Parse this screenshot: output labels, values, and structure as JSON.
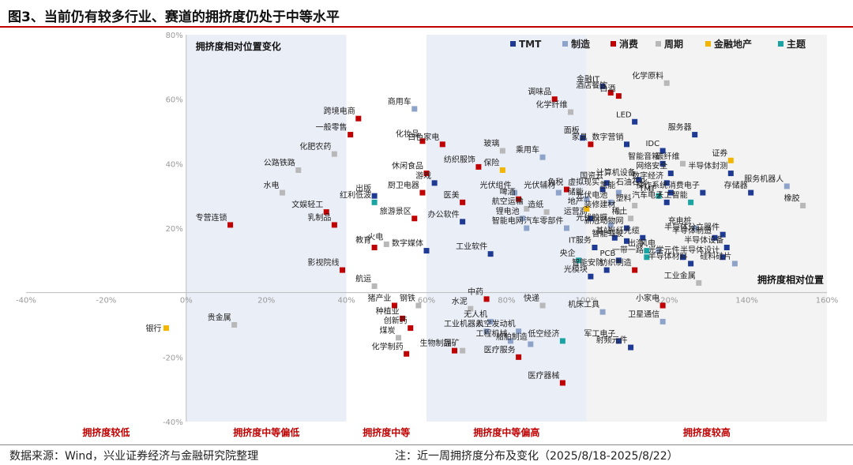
{
  "title": "图3、当前仍有较多行业、赛道的拥挤度仍处于中等水平",
  "footer": {
    "source": "数据来源：Wind，兴业证券经济与金融研究院整理",
    "note": "注：近一周拥挤度分布及变化（2025/8/18-2025/8/22）"
  },
  "colors": {
    "TMT": "#1f3a93",
    "制造": "#8ea3c9",
    "消费": "#c00000",
    "周期": "#b8b8b8",
    "金融地产": "#f2b600",
    "主题": "#1aa3a3"
  },
  "chart_data": {
    "type": "scatter",
    "xlabel": "拥挤度相对位置",
    "ylabel": "拥挤度相对位置变化",
    "xlim": [
      -40,
      160
    ],
    "ylim": [
      -40,
      80
    ],
    "xticks": [
      "-40%",
      "-20%",
      "0%",
      "20%",
      "40%",
      "60%",
      "80%",
      "100%",
      "120%",
      "140%",
      "160%"
    ],
    "yticks": [
      "-40%",
      "-20%",
      "0%",
      "20%",
      "40%",
      "60%",
      "80%"
    ],
    "zones": [
      {
        "from": 0,
        "to": 40,
        "label": "拥挤度中等偏低",
        "fill": "#eaeef7"
      },
      {
        "from": 40,
        "to": 60,
        "label": "拥挤度中等",
        "fill": "#ffffff"
      },
      {
        "from": 60,
        "to": 100,
        "label": "拥挤度中等偏高",
        "fill": "#eaeef7"
      },
      {
        "from": 100,
        "to": 160,
        "label": "拥挤度较高",
        "fill": "#f3f3f3"
      }
    ],
    "left_zone_label": "拥挤度较低",
    "legend": [
      "TMT",
      "制造",
      "消费",
      "周期",
      "金融地产",
      "主题"
    ],
    "points": [
      {
        "name": "银行",
        "x": -5,
        "y": -11,
        "cat": "金融地产"
      },
      {
        "name": "贵金属",
        "x": 12,
        "y": -10,
        "cat": "周期"
      },
      {
        "name": "专营连锁",
        "x": 11,
        "y": 21,
        "cat": "消费"
      },
      {
        "name": "跨境电商",
        "x": 43,
        "y": 54,
        "cat": "消费"
      },
      {
        "name": "一般零售",
        "x": 41,
        "y": 49,
        "cat": "消费"
      },
      {
        "name": "化肥农药",
        "x": 37,
        "y": 43,
        "cat": "周期"
      },
      {
        "name": "公路铁路",
        "x": 28,
        "y": 38,
        "cat": "周期"
      },
      {
        "name": "水电",
        "x": 24,
        "y": 31,
        "cat": "周期"
      },
      {
        "name": "文娱轻工",
        "x": 35,
        "y": 25,
        "cat": "消费"
      },
      {
        "name": "乳制品",
        "x": 37,
        "y": 21,
        "cat": "消费"
      },
      {
        "name": "出版",
        "x": 47,
        "y": 30,
        "cat": "TMT"
      },
      {
        "name": "红利低波",
        "x": 47,
        "y": 28,
        "cat": "主题"
      },
      {
        "name": "影视院线",
        "x": 39,
        "y": 7,
        "cat": "消费"
      },
      {
        "name": "教育",
        "x": 47,
        "y": 14,
        "cat": "消费"
      },
      {
        "name": "火电",
        "x": 50,
        "y": 15,
        "cat": "周期"
      },
      {
        "name": "航运",
        "x": 47,
        "y": 2,
        "cat": "周期"
      },
      {
        "name": "商用车",
        "x": 57,
        "y": 57,
        "cat": "制造"
      },
      {
        "name": "化妆品",
        "x": 59,
        "y": 47,
        "cat": "消费"
      },
      {
        "name": "白色家电",
        "x": 64,
        "y": 46,
        "cat": "消费"
      },
      {
        "name": "休闲食品",
        "x": 60,
        "y": 37,
        "cat": "消费"
      },
      {
        "name": "厨卫电器",
        "x": 59,
        "y": 31,
        "cat": "消费"
      },
      {
        "name": "游戏",
        "x": 62,
        "y": 34,
        "cat": "TMT"
      },
      {
        "name": "旅游景区",
        "x": 57,
        "y": 23,
        "cat": "消费"
      },
      {
        "name": "办公软件",
        "x": 69,
        "y": 22,
        "cat": "TMT"
      },
      {
        "name": "数字媒体",
        "x": 60,
        "y": 13,
        "cat": "TMT"
      },
      {
        "name": "医美",
        "x": 69,
        "y": 28,
        "cat": "消费"
      },
      {
        "name": "纺织服饰",
        "x": 73,
        "y": 39,
        "cat": "消费"
      },
      {
        "name": "玻璃",
        "x": 79,
        "y": 44,
        "cat": "周期"
      },
      {
        "name": "保险",
        "x": 79,
        "y": 38,
        "cat": "金融地产"
      },
      {
        "name": "调味品",
        "x": 92,
        "y": 60,
        "cat": "消费"
      },
      {
        "name": "化学纤维",
        "x": 96,
        "y": 56,
        "cat": "周期"
      },
      {
        "name": "乘用车",
        "x": 89,
        "y": 42,
        "cat": "制造"
      },
      {
        "name": "光伏组件",
        "x": 82,
        "y": 31,
        "cat": "制造"
      },
      {
        "name": "啤酒",
        "x": 83,
        "y": 29,
        "cat": "消费"
      },
      {
        "name": "航空运输",
        "x": 85,
        "y": 26,
        "cat": "周期"
      },
      {
        "name": "锂电池",
        "x": 84,
        "y": 23,
        "cat": "制造"
      },
      {
        "name": "智能电网",
        "x": 85,
        "y": 20,
        "cat": "制造"
      },
      {
        "name": "造纸",
        "x": 90,
        "y": 25,
        "cat": "周期"
      },
      {
        "name": "光伏辅材",
        "x": 93,
        "y": 31,
        "cat": "制造"
      },
      {
        "name": "免税",
        "x": 95,
        "y": 32,
        "cat": "消费"
      },
      {
        "name": "储能",
        "x": 100,
        "y": 29,
        "cat": "制造"
      },
      {
        "name": "工业软件",
        "x": 76,
        "y": 12,
        "cat": "TMT"
      },
      {
        "name": "汽车零部件",
        "x": 95,
        "y": 20,
        "cat": "制造"
      },
      {
        "name": "运营商",
        "x": 101,
        "y": 23,
        "cat": "TMT"
      },
      {
        "name": "IT服务",
        "x": 102,
        "y": 14,
        "cat": "TMT"
      },
      {
        "name": "央企",
        "x": 98,
        "y": 10,
        "cat": "主题"
      },
      {
        "name": "光模块",
        "x": 101,
        "y": 5,
        "cat": "TMT"
      },
      {
        "name": "智能安防",
        "x": 105,
        "y": 7,
        "cat": "TMT"
      },
      {
        "name": "金融IT",
        "x": 104,
        "y": 64,
        "cat": "TMT"
      },
      {
        "name": "酒店餐饮",
        "x": 106,
        "y": 62,
        "cat": "消费"
      },
      {
        "name": "白酒",
        "x": 108,
        "y": 61,
        "cat": "消费"
      },
      {
        "name": "面板",
        "x": 99,
        "y": 48,
        "cat": "TMT"
      },
      {
        "name": "家具",
        "x": 101,
        "y": 46,
        "cat": "消费"
      },
      {
        "name": "LED",
        "x": 112,
        "y": 53,
        "cat": "TMT"
      },
      {
        "name": "数字营销",
        "x": 110,
        "y": 46,
        "cat": "TMT"
      },
      {
        "name": "IDC",
        "x": 119,
        "y": 44,
        "cat": "TMT"
      },
      {
        "name": "化学原料",
        "x": 120,
        "y": 65,
        "cat": "周期"
      },
      {
        "name": "服务器",
        "x": 127,
        "y": 49,
        "cat": "TMT"
      },
      {
        "name": "智能音箱",
        "x": 119,
        "y": 40,
        "cat": "TMT"
      },
      {
        "name": "碳纤维",
        "x": 124,
        "y": 40,
        "cat": "周期"
      },
      {
        "name": "国资云",
        "x": 105,
        "y": 34,
        "cat": "TMT"
      },
      {
        "name": "计算机设备",
        "x": 113,
        "y": 35,
        "cat": "TMT"
      },
      {
        "name": "石油石化",
        "x": 116,
        "y": 32,
        "cat": "周期"
      },
      {
        "name": "网络安全",
        "x": 121,
        "y": 37,
        "cat": "TMT"
      },
      {
        "name": "数字经济",
        "x": 120,
        "y": 34,
        "cat": "TMT"
      },
      {
        "name": "虚拟现实",
        "x": 104,
        "y": 32,
        "cat": "TMT"
      },
      {
        "name": "氢能",
        "x": 108,
        "y": 31,
        "cat": "制造"
      },
      {
        "name": "光伏电池",
        "x": 106,
        "y": 28,
        "cat": "制造"
      },
      {
        "name": "TMT",
        "x": 118,
        "y": 30,
        "cat": "主题"
      },
      {
        "name": "操作系统",
        "x": 121,
        "y": 31,
        "cat": "TMT"
      },
      {
        "name": "证券",
        "x": 136,
        "y": 41,
        "cat": "金融地产"
      },
      {
        "name": "半导体封测",
        "x": 136,
        "y": 37,
        "cat": "TMT"
      },
      {
        "name": "服务机器人",
        "x": 150,
        "y": 33,
        "cat": "制造"
      },
      {
        "name": "消费电子",
        "x": 129,
        "y": 31,
        "cat": "TMT"
      },
      {
        "name": "存储器",
        "x": 141,
        "y": 31,
        "cat": "TMT"
      },
      {
        "name": "橡胶",
        "x": 154,
        "y": 27,
        "cat": "周期"
      },
      {
        "name": "人工智能",
        "x": 126,
        "y": 28,
        "cat": "主题"
      },
      {
        "name": "汽车电子",
        "x": 120,
        "y": 28,
        "cat": "TMT"
      },
      {
        "name": "地产",
        "x": 100,
        "y": 26,
        "cat": "金融地产"
      },
      {
        "name": "装修建材",
        "x": 108,
        "y": 25,
        "cat": "周期"
      },
      {
        "name": "塑料",
        "x": 112,
        "y": 27,
        "cat": "周期"
      },
      {
        "name": "稀土",
        "x": 111,
        "y": 23,
        "cat": "周期"
      },
      {
        "name": "光伏胶膜",
        "x": 106,
        "y": 21,
        "cat": "制造"
      },
      {
        "name": "新冠动物网",
        "x": 110,
        "y": 20,
        "cat": "TMT"
      },
      {
        "name": "充电桩",
        "x": 127,
        "y": 20,
        "cat": "制造"
      },
      {
        "name": "半导体分立器件",
        "x": 134,
        "y": 18,
        "cat": "TMT"
      },
      {
        "name": "半导体制造",
        "x": 132,
        "y": 17,
        "cat": "TMT"
      },
      {
        "name": "半导体设备",
        "x": 135,
        "y": 14,
        "cat": "TMT"
      },
      {
        "name": "半导体设计",
        "x": 134,
        "y": 11,
        "cat": "TMT"
      },
      {
        "name": "基站",
        "x": 107,
        "y": 17,
        "cat": "TMT"
      },
      {
        "name": "智能驾驶",
        "x": 110,
        "y": 16,
        "cat": "TMT"
      },
      {
        "name": "光纤光缆",
        "x": 114,
        "y": 17,
        "cat": "TMT"
      },
      {
        "name": "风电",
        "x": 118,
        "y": 13,
        "cat": "制造"
      },
      {
        "name": "光学元件",
        "x": 124,
        "y": 11,
        "cat": "TMT"
      },
      {
        "name": "出海",
        "x": 115,
        "y": 13,
        "cat": "主题"
      },
      {
        "name": "一带一路",
        "x": 115,
        "y": 11,
        "cat": "主题"
      },
      {
        "name": "PCB",
        "x": 108,
        "y": 10,
        "cat": "TMT"
      },
      {
        "name": "半导体材料",
        "x": 126,
        "y": 9,
        "cat": "TMT"
      },
      {
        "name": "硅料硅片",
        "x": 137,
        "y": 9,
        "cat": "制造"
      },
      {
        "name": "工业金属",
        "x": 128,
        "y": 3,
        "cat": "周期"
      },
      {
        "name": "纺织制造",
        "x": 112,
        "y": 7,
        "cat": "消费"
      },
      {
        "name": "猪产业",
        "x": 52,
        "y": -4,
        "cat": "消费"
      },
      {
        "name": "钢铁",
        "x": 58,
        "y": -4,
        "cat": "周期"
      },
      {
        "name": "种植业",
        "x": 54,
        "y": -8,
        "cat": "消费"
      },
      {
        "name": "创新药",
        "x": 56,
        "y": -11,
        "cat": "消费"
      },
      {
        "name": "煤炭",
        "x": 53,
        "y": -14,
        "cat": "周期"
      },
      {
        "name": "化学制药",
        "x": 55,
        "y": -19,
        "cat": "消费"
      },
      {
        "name": "中药",
        "x": 75,
        "y": -2,
        "cat": "消费"
      },
      {
        "name": "水泥",
        "x": 71,
        "y": -5,
        "cat": "周期"
      },
      {
        "name": "无人机",
        "x": 76,
        "y": -9,
        "cat": "制造"
      },
      {
        "name": "工业机器人",
        "x": 75,
        "y": -12,
        "cat": "制造"
      },
      {
        "name": "航空发动机",
        "x": 83,
        "y": -12,
        "cat": "制造"
      },
      {
        "name": "生物制品",
        "x": 67,
        "y": -18,
        "cat": "消费"
      },
      {
        "name": "锂矿",
        "x": 69,
        "y": -18,
        "cat": "周期"
      },
      {
        "name": "工程机械",
        "x": 81,
        "y": -15,
        "cat": "制造"
      },
      {
        "name": "船舶制造",
        "x": 86,
        "y": -16,
        "cat": "制造"
      },
      {
        "name": "低空经济",
        "x": 94,
        "y": -15,
        "cat": "主题"
      },
      {
        "name": "医疗服务",
        "x": 83,
        "y": -20,
        "cat": "消费"
      },
      {
        "name": "快递",
        "x": 89,
        "y": -4,
        "cat": "周期"
      },
      {
        "name": "医疗器械",
        "x": 94,
        "y": -28,
        "cat": "消费"
      },
      {
        "name": "机床工具",
        "x": 104,
        "y": -6,
        "cat": "制造"
      },
      {
        "name": "军工电子",
        "x": 108,
        "y": -15,
        "cat": "TMT"
      },
      {
        "name": "射频元件",
        "x": 111,
        "y": -17,
        "cat": "TMT"
      },
      {
        "name": "小家电",
        "x": 119,
        "y": -4,
        "cat": "消费"
      },
      {
        "name": "卫星通信",
        "x": 119,
        "y": -9,
        "cat": "制造"
      }
    ]
  }
}
